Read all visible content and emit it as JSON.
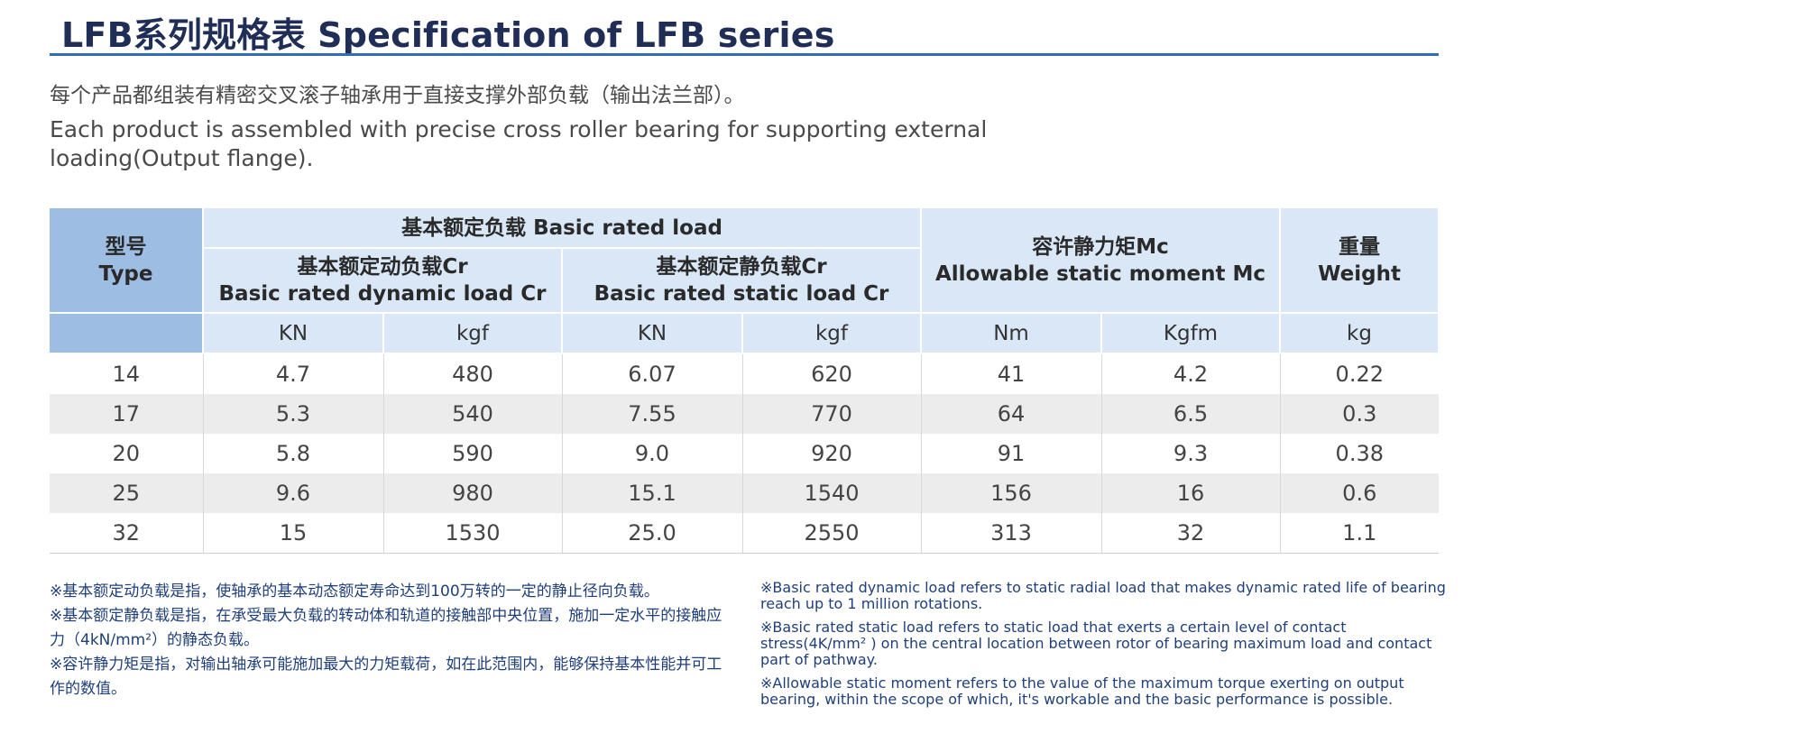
{
  "title": "LFB系列规格表 Specification of LFB series",
  "intro": {
    "cn": "每个产品都组装有精密交叉滚子轴承用于直接支撑外部负载（输出法兰部）。",
    "en": "Each product is assembled with precise cross roller bearing for supporting external loading(Output flange)."
  },
  "table": {
    "header": {
      "type_cn": "型号",
      "type_en": "Type",
      "basic_rated_load": "基本额定负载 Basic rated load",
      "dynamic_cn": "基本额定动负载Cr",
      "dynamic_en": "Basic rated dynamic load Cr",
      "static_cn": "基本额定静负载Cr",
      "static_en": "Basic rated static load Cr",
      "moment_cn": "容许静力矩Mc",
      "moment_en": "Allowable static moment Mc",
      "weight_cn": "重量",
      "weight_en": "Weight"
    },
    "units": [
      "KN",
      "kgf",
      "KN",
      "kgf",
      "Nm",
      "Kgfm",
      "kg"
    ],
    "rows": [
      [
        "14",
        "4.7",
        "480",
        "6.07",
        "620",
        "41",
        "4.2",
        "0.22"
      ],
      [
        "17",
        "5.3",
        "540",
        "7.55",
        "770",
        "64",
        "6.5",
        "0.3"
      ],
      [
        "20",
        "5.8",
        "590",
        "9.0",
        "920",
        "91",
        "9.3",
        "0.38"
      ],
      [
        "25",
        "9.6",
        "980",
        "15.1",
        "1540",
        "156",
        "16",
        "0.6"
      ],
      [
        "32",
        "15",
        "1530",
        "25.0",
        "2550",
        "313",
        "32",
        "1.1"
      ]
    ]
  },
  "notes": {
    "cn": [
      "※基本额定动负载是指，使轴承的基本动态额定寿命达到100万转的一定的静止径向负载。",
      "※基本额定静负载是指，在承受最大负载的转动体和轨道的接触部中央位置，施加一定水平的接触应力（4kN/mm²）的静态负载。",
      "※容许静力矩是指，对输出轴承可能施加最大的力矩载荷，如在此范围内，能够保持基本性能并可工作的数值。"
    ],
    "en": [
      "※Basic rated dynamic load refers to static radial load that makes dynamic rated life of bearing reach up to 1 million rotations.",
      "※Basic rated static load refers to static load that exerts a certain level of contact stress(4K/mm² ) on the central location between rotor of bearing maximum load and contact part of pathway.",
      "※Allowable static moment refers to the value of the maximum torque exerting on output bearing, within the scope of which, it's workable and the basic performance is possible."
    ]
  }
}
